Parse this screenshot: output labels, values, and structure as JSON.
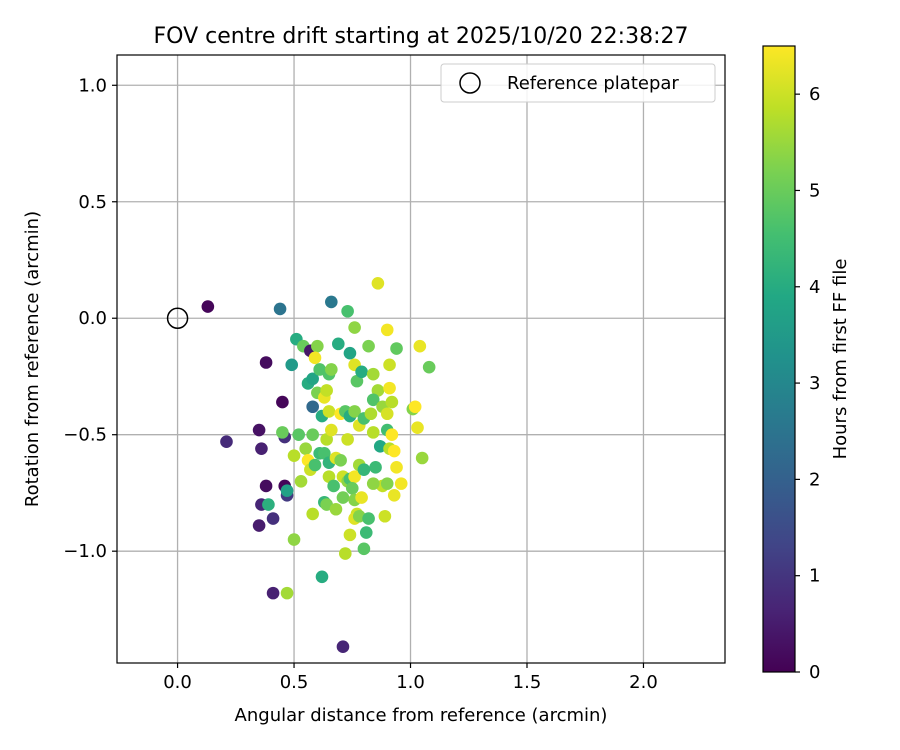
{
  "chart_data": {
    "type": "scatter",
    "title": "FOV centre drift starting at 2025/10/20 22:38:27",
    "xlabel": "Angular distance from reference (arcmin)",
    "ylabel": "Rotation from reference (arcmin)",
    "xlim": [
      -0.26,
      2.35
    ],
    "ylim": [
      -1.48,
      1.13
    ],
    "xticks": [
      0.0,
      0.5,
      1.0,
      1.5,
      2.0
    ],
    "xtick_labels": [
      "0.0",
      "0.5",
      "1.0",
      "1.5",
      "2.0"
    ],
    "yticks": [
      1.0,
      0.5,
      0.0,
      -0.5,
      -1.0
    ],
    "ytick_labels": [
      "1.0",
      "0.5",
      "0.0",
      "−0.5",
      "−1.0"
    ],
    "grid": true,
    "legend": {
      "position": "top-right",
      "label": "Reference platepar"
    },
    "reference_point": {
      "x": 0.0,
      "y": 0.0
    },
    "colorbar": {
      "label": "Hours from first FF file",
      "range": [
        0,
        6.5
      ],
      "ticks": [
        0,
        1,
        2,
        3,
        4,
        5,
        6
      ],
      "tick_labels": [
        "0",
        "1",
        "2",
        "3",
        "4",
        "5",
        "6"
      ],
      "colormap": "viridis"
    },
    "points": [
      {
        "x": 0.13,
        "y": 0.05,
        "h": 0.1
      },
      {
        "x": 0.21,
        "y": -0.53,
        "h": 0.8
      },
      {
        "x": 0.35,
        "y": -0.48,
        "h": 0.3
      },
      {
        "x": 0.36,
        "y": -0.56,
        "h": 0.6
      },
      {
        "x": 0.35,
        "y": -0.89,
        "h": 0.5
      },
      {
        "x": 0.38,
        "y": -0.19,
        "h": 0.2
      },
      {
        "x": 0.38,
        "y": -0.72,
        "h": 0.2
      },
      {
        "x": 0.36,
        "y": -0.8,
        "h": 0.7
      },
      {
        "x": 0.41,
        "y": -0.86,
        "h": 0.9
      },
      {
        "x": 0.41,
        "y": -1.18,
        "h": 0.6
      },
      {
        "x": 0.45,
        "y": -0.36,
        "h": 0.1
      },
      {
        "x": 0.46,
        "y": -0.51,
        "h": 0.9
      },
      {
        "x": 0.46,
        "y": -0.72,
        "h": 0.1
      },
      {
        "x": 0.47,
        "y": -0.76,
        "h": 1.1
      },
      {
        "x": 0.71,
        "y": -1.41,
        "h": 0.7
      },
      {
        "x": 0.44,
        "y": 0.04,
        "h": 2.5
      },
      {
        "x": 0.66,
        "y": 0.07,
        "h": 2.6
      },
      {
        "x": 0.73,
        "y": 0.03,
        "h": 4.6
      },
      {
        "x": 0.86,
        "y": 0.15,
        "h": 6.2
      },
      {
        "x": 0.51,
        "y": -0.09,
        "h": 4.0
      },
      {
        "x": 0.49,
        "y": -0.2,
        "h": 3.5
      },
      {
        "x": 0.54,
        "y": -0.12,
        "h": 5.0
      },
      {
        "x": 0.57,
        "y": -0.14,
        "h": 0.4
      },
      {
        "x": 0.6,
        "y": -0.12,
        "h": 5.3
      },
      {
        "x": 0.59,
        "y": -0.17,
        "h": 6.4
      },
      {
        "x": 0.56,
        "y": -0.28,
        "h": 4.0
      },
      {
        "x": 0.58,
        "y": -0.26,
        "h": 3.8
      },
      {
        "x": 0.61,
        "y": -0.22,
        "h": 4.7
      },
      {
        "x": 0.6,
        "y": -0.32,
        "h": 5.2
      },
      {
        "x": 0.58,
        "y": -0.38,
        "h": 2.2
      },
      {
        "x": 0.63,
        "y": -0.34,
        "h": 6.3
      },
      {
        "x": 0.64,
        "y": -0.31,
        "h": 5.9
      },
      {
        "x": 0.65,
        "y": -0.24,
        "h": 4.7
      },
      {
        "x": 0.66,
        "y": -0.22,
        "h": 5.3
      },
      {
        "x": 0.69,
        "y": -0.11,
        "h": 4.0
      },
      {
        "x": 0.74,
        "y": -0.15,
        "h": 3.8
      },
      {
        "x": 0.76,
        "y": -0.04,
        "h": 5.4
      },
      {
        "x": 0.76,
        "y": -0.2,
        "h": 6.2
      },
      {
        "x": 0.77,
        "y": -0.27,
        "h": 4.8
      },
      {
        "x": 0.79,
        "y": -0.23,
        "h": 4.0
      },
      {
        "x": 0.82,
        "y": -0.12,
        "h": 5.2
      },
      {
        "x": 0.84,
        "y": -0.24,
        "h": 5.6
      },
      {
        "x": 0.86,
        "y": -0.31,
        "h": 5.6
      },
      {
        "x": 0.84,
        "y": -0.35,
        "h": 4.7
      },
      {
        "x": 0.88,
        "y": -0.38,
        "h": 5.5
      },
      {
        "x": 0.9,
        "y": -0.05,
        "h": 6.4
      },
      {
        "x": 0.91,
        "y": -0.2,
        "h": 6.0
      },
      {
        "x": 0.94,
        "y": -0.13,
        "h": 4.9
      },
      {
        "x": 0.91,
        "y": -0.3,
        "h": 6.4
      },
      {
        "x": 0.92,
        "y": -0.36,
        "h": 5.8
      },
      {
        "x": 0.9,
        "y": -0.41,
        "h": 6.1
      },
      {
        "x": 1.01,
        "y": -0.39,
        "h": 5.3
      },
      {
        "x": 1.02,
        "y": -0.38,
        "h": 6.5
      },
      {
        "x": 1.04,
        "y": -0.12,
        "h": 6.3
      },
      {
        "x": 1.08,
        "y": -0.21,
        "h": 5.0
      },
      {
        "x": 1.03,
        "y": -0.47,
        "h": 6.3
      },
      {
        "x": 0.45,
        "y": -0.49,
        "h": 5.0
      },
      {
        "x": 0.52,
        "y": -0.5,
        "h": 4.8
      },
      {
        "x": 0.58,
        "y": -0.5,
        "h": 5.0
      },
      {
        "x": 0.62,
        "y": -0.42,
        "h": 4.0
      },
      {
        "x": 0.65,
        "y": -0.4,
        "h": 6.0
      },
      {
        "x": 0.64,
        "y": -0.52,
        "h": 5.8
      },
      {
        "x": 0.66,
        "y": -0.48,
        "h": 6.2
      },
      {
        "x": 0.7,
        "y": -0.41,
        "h": 6.5
      },
      {
        "x": 0.72,
        "y": -0.4,
        "h": 4.8
      },
      {
        "x": 0.74,
        "y": -0.42,
        "h": 4.0
      },
      {
        "x": 0.73,
        "y": -0.52,
        "h": 6.0
      },
      {
        "x": 0.76,
        "y": -0.4,
        "h": 5.3
      },
      {
        "x": 0.78,
        "y": -0.46,
        "h": 6.2
      },
      {
        "x": 0.8,
        "y": -0.43,
        "h": 4.6
      },
      {
        "x": 0.83,
        "y": -0.41,
        "h": 5.7
      },
      {
        "x": 0.84,
        "y": -0.49,
        "h": 5.8
      },
      {
        "x": 0.87,
        "y": -0.55,
        "h": 3.9
      },
      {
        "x": 0.9,
        "y": -0.48,
        "h": 4.5
      },
      {
        "x": 0.92,
        "y": -0.5,
        "h": 6.5
      },
      {
        "x": 0.91,
        "y": -0.56,
        "h": 5.8
      },
      {
        "x": 0.93,
        "y": -0.57,
        "h": 6.5
      },
      {
        "x": 0.94,
        "y": -0.64,
        "h": 6.4
      },
      {
        "x": 0.96,
        "y": -0.71,
        "h": 6.4
      },
      {
        "x": 0.93,
        "y": -0.76,
        "h": 6.3
      },
      {
        "x": 0.88,
        "y": -0.72,
        "h": 5.9
      },
      {
        "x": 0.9,
        "y": -0.71,
        "h": 5.3
      },
      {
        "x": 0.85,
        "y": -0.64,
        "h": 4.4
      },
      {
        "x": 1.05,
        "y": -0.6,
        "h": 5.5
      },
      {
        "x": 0.5,
        "y": -0.59,
        "h": 5.8
      },
      {
        "x": 0.55,
        "y": -0.56,
        "h": 5.5
      },
      {
        "x": 0.56,
        "y": -0.61,
        "h": 6.5
      },
      {
        "x": 0.57,
        "y": -0.65,
        "h": 6.0
      },
      {
        "x": 0.59,
        "y": -0.63,
        "h": 4.6
      },
      {
        "x": 0.61,
        "y": -0.58,
        "h": 4.4
      },
      {
        "x": 0.63,
        "y": -0.58,
        "h": 4.6
      },
      {
        "x": 0.65,
        "y": -0.62,
        "h": 4.2
      },
      {
        "x": 0.68,
        "y": -0.6,
        "h": 6.2
      },
      {
        "x": 0.7,
        "y": -0.61,
        "h": 5.2
      },
      {
        "x": 0.71,
        "y": -0.68,
        "h": 6.0
      },
      {
        "x": 0.73,
        "y": -0.7,
        "h": 5.4
      },
      {
        "x": 0.74,
        "y": -0.69,
        "h": 4.6
      },
      {
        "x": 0.76,
        "y": -0.68,
        "h": 6.4
      },
      {
        "x": 0.78,
        "y": -0.63,
        "h": 5.6
      },
      {
        "x": 0.8,
        "y": -0.65,
        "h": 4.3
      },
      {
        "x": 0.65,
        "y": -0.68,
        "h": 5.8
      },
      {
        "x": 0.67,
        "y": -0.72,
        "h": 4.6
      },
      {
        "x": 0.53,
        "y": -0.7,
        "h": 5.6
      },
      {
        "x": 0.47,
        "y": -0.74,
        "h": 3.7
      },
      {
        "x": 0.39,
        "y": -0.8,
        "h": 4.1
      },
      {
        "x": 0.58,
        "y": -0.84,
        "h": 5.8
      },
      {
        "x": 0.63,
        "y": -0.79,
        "h": 4.3
      },
      {
        "x": 0.64,
        "y": -0.8,
        "h": 5.2
      },
      {
        "x": 0.68,
        "y": -0.82,
        "h": 5.5
      },
      {
        "x": 0.71,
        "y": -0.77,
        "h": 5.1
      },
      {
        "x": 0.75,
        "y": -0.73,
        "h": 5.0
      },
      {
        "x": 0.76,
        "y": -0.78,
        "h": 5.3
      },
      {
        "x": 0.77,
        "y": -0.84,
        "h": 6.0
      },
      {
        "x": 0.76,
        "y": -0.86,
        "h": 6.2
      },
      {
        "x": 0.78,
        "y": -0.85,
        "h": 5.3
      },
      {
        "x": 0.79,
        "y": -0.77,
        "h": 6.3
      },
      {
        "x": 0.82,
        "y": -0.86,
        "h": 4.6
      },
      {
        "x": 0.84,
        "y": -0.71,
        "h": 5.4
      },
      {
        "x": 0.89,
        "y": -0.85,
        "h": 6.0
      },
      {
        "x": 0.81,
        "y": -0.92,
        "h": 4.4
      },
      {
        "x": 0.74,
        "y": -0.93,
        "h": 6.0
      },
      {
        "x": 0.5,
        "y": -0.95,
        "h": 5.4
      },
      {
        "x": 0.72,
        "y": -1.01,
        "h": 5.8
      },
      {
        "x": 0.8,
        "y": -0.99,
        "h": 4.8
      },
      {
        "x": 0.62,
        "y": -1.11,
        "h": 4.0
      },
      {
        "x": 0.47,
        "y": -1.18,
        "h": 5.6
      }
    ]
  }
}
